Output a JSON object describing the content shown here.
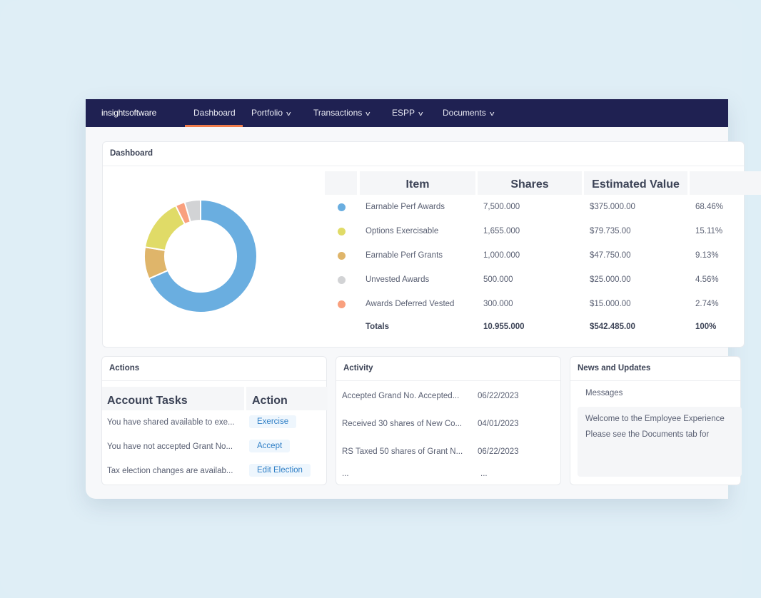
{
  "nav": {
    "logo": "insightsoftware",
    "items": [
      {
        "label": "Dashboard",
        "active": true
      },
      {
        "label": "Portfolio",
        "dropdown": true
      },
      {
        "label": "Transactions",
        "dropdown": true
      },
      {
        "label": "ESPP",
        "dropdown": true
      },
      {
        "label": "Documents",
        "dropdown": true
      }
    ],
    "accent": "#f07c4b"
  },
  "dashboard": {
    "title": "Dashboard",
    "columns": [
      "",
      "Item",
      "Shares",
      "Estimated Value",
      ""
    ],
    "rows": [
      {
        "item": "Earnable Perf Awards",
        "shares": "7,500.000",
        "value": "$375.000.00",
        "pct": "68.46%",
        "color": "#6aaee0"
      },
      {
        "item": "Options Exercisable",
        "shares": "1,655.000",
        "value": "$79.735.00",
        "pct": "15.11%",
        "color": "#e0db67"
      },
      {
        "item": "Earnable Perf Grants",
        "shares": "1,000.000",
        "value": "$47.750.00",
        "pct": "9.13%",
        "color": "#dfb56a"
      },
      {
        "item": "Unvested Awards",
        "shares": "500.000",
        "value": "$25.000.00",
        "pct": "4.56%",
        "color": "#d2d3d5"
      },
      {
        "item": "Awards  Deferred Vested",
        "shares": "300.000",
        "value": "$15.000.00",
        "pct": "2.74%",
        "color": "#f9a07e"
      }
    ],
    "totals": {
      "label": "Totals",
      "shares": "10.955.000",
      "value": "$542.485.00",
      "pct": "100%"
    }
  },
  "chart_data": {
    "type": "pie",
    "donut": true,
    "categories": [
      "Earnable Perf Awards",
      "Earnable Perf Grants",
      "Options Exercisable",
      "Awards  Deferred Vested",
      "Unvested Awards"
    ],
    "values": [
      68.46,
      9.13,
      15.11,
      2.74,
      4.56
    ],
    "colors": [
      "#6aaee0",
      "#dfb56a",
      "#e0db67",
      "#f9a07e",
      "#d2d3d5"
    ]
  },
  "actions": {
    "title": "Actions",
    "columns": [
      "Account Tasks",
      "Action"
    ],
    "rows": [
      {
        "task": "You have shared available to exe...",
        "action": "Exercise"
      },
      {
        "task": "You have not accepted Grant No...",
        "action": "Accept"
      },
      {
        "task": "Tax election changes are availab...",
        "action": "Edit Election"
      }
    ]
  },
  "activity": {
    "title": "Activity",
    "rows": [
      {
        "text": "Accepted Grand No. Accepted...",
        "date": "06/22/2023"
      },
      {
        "text": "Received 30 shares of New Co...",
        "date": "04/01/2023"
      },
      {
        "text": "RS Taxed 50 shares of Grant N...",
        "date": "06/22/2023"
      },
      {
        "text": "...",
        "date": "..."
      }
    ]
  },
  "news": {
    "title": "News and Updates",
    "tab": "Messages",
    "lines": [
      "Welcome to the Employee Experience",
      "Please see the Documents tab for"
    ]
  }
}
